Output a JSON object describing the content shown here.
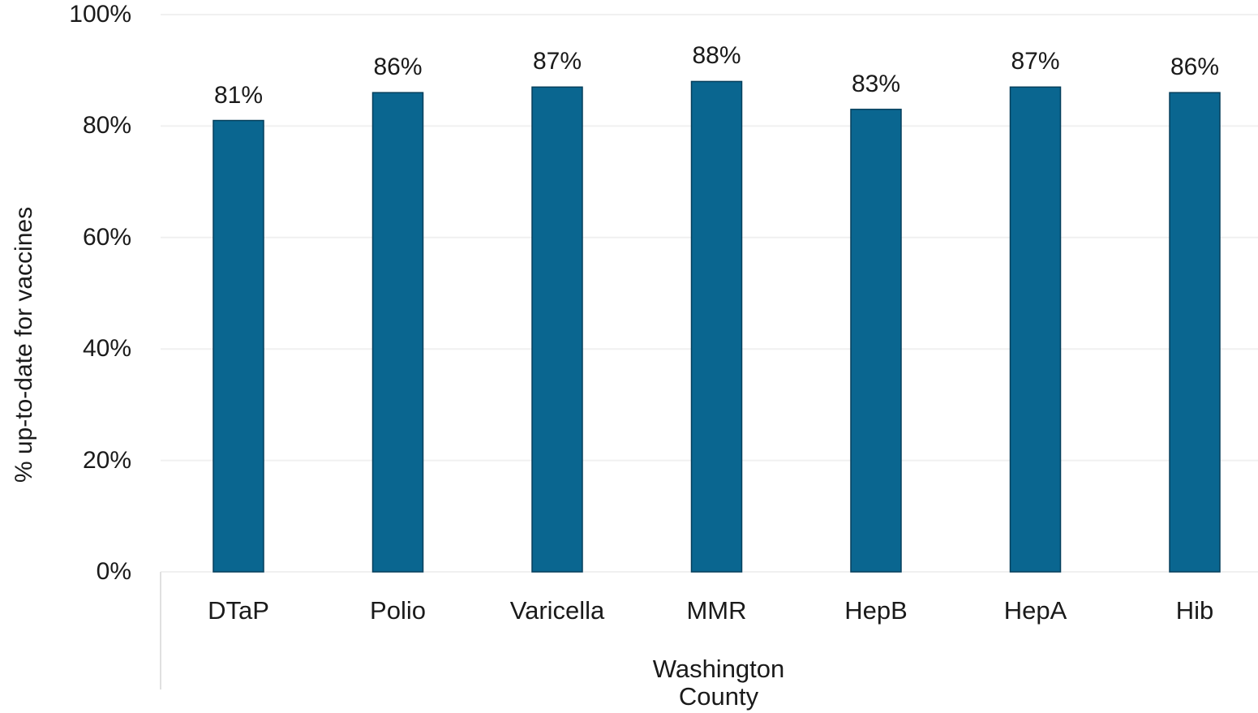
{
  "chart_data": {
    "type": "bar",
    "categories": [
      "DTaP",
      "Polio",
      "Varicella",
      "MMR",
      "HepB",
      "HepA",
      "Hib"
    ],
    "values": [
      81,
      86,
      87,
      88,
      83,
      87,
      86
    ],
    "data_labels": [
      "81%",
      "86%",
      "87%",
      "88%",
      "83%",
      "87%",
      "86%"
    ],
    "ylabel": "% up-to-date for vaccines",
    "xlabel": "Washington\nCounty",
    "ylim": [
      0,
      100
    ],
    "yticks": [
      "0%",
      "20%",
      "40%",
      "60%",
      "80%",
      "100%"
    ],
    "ytick_values": [
      0,
      20,
      40,
      60,
      80,
      100
    ],
    "grid": true,
    "legend": "none",
    "bar_color": "#0a6690",
    "gridline_color": "#f0f0f0"
  }
}
